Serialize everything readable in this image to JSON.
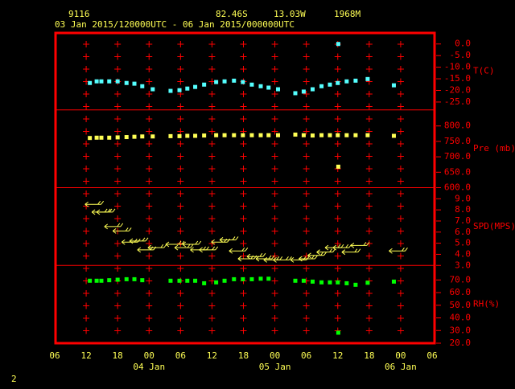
{
  "header": {
    "station": "9116",
    "lat": "82.46S",
    "lon": "13.03W",
    "elev": "1968M",
    "period": "03 Jan 2015/120000UTC - 06 Jan 2015/000000UTC",
    "page": "2"
  },
  "axis": {
    "xlim": [
      6,
      78
    ],
    "xticks": [
      {
        "value": 6,
        "label": "06"
      },
      12,
      18,
      {
        "value": 24,
        "label": "00"
      },
      {
        "value": 30,
        "label": "06"
      },
      {
        "value": 36,
        "label": "12"
      },
      {
        "value": 42,
        "label": "18"
      },
      {
        "value": 48,
        "label": "00"
      },
      {
        "value": 54,
        "label": "06"
      },
      {
        "value": 60,
        "label": "12"
      },
      {
        "value": 66,
        "label": "18"
      },
      {
        "value": 72,
        "label": "00"
      },
      {
        "value": 78,
        "label": "06"
      }
    ],
    "date_labels": [
      {
        "value": 24,
        "label": "04 Jan"
      },
      {
        "value": 48,
        "label": "05 Jan"
      },
      {
        "value": 72,
        "label": "06 Jan"
      }
    ],
    "x": [
      12.7,
      14.0,
      14.9,
      16.4,
      18.0,
      19.7,
      21.2,
      22.7,
      24.7,
      28.1,
      29.8,
      31.3,
      32.8,
      34.5,
      36.8,
      38.4,
      40.2,
      41.9,
      43.6,
      45.3,
      46.8,
      48.6,
      51.9,
      53.5,
      55.2,
      56.9,
      58.5,
      60.0,
      60.1,
      61.7,
      63.4,
      65.7,
      70.7
    ]
  },
  "chart_data": [
    {
      "type": "scatter",
      "title": "T(C)",
      "color": "#55ffff",
      "ylim": [
        -28.4,
        5.1
      ],
      "yticks": [
        {
          "value": 0,
          "label": "0.0"
        },
        {
          "value": -5,
          "label": "-5.0"
        },
        {
          "value": -10,
          "label": "-10.0"
        },
        {
          "value": -15,
          "label": "-15.0"
        },
        {
          "value": -20,
          "label": "-20.0"
        },
        {
          "value": -25,
          "label": "-25.0"
        }
      ],
      "values": [
        -16.8,
        -16.1,
        -16.1,
        -16.1,
        -16.1,
        -16.8,
        -17.1,
        -18.2,
        -19.5,
        -20.2,
        -19.9,
        -19.2,
        -18.5,
        -17.5,
        -16.4,
        -16.1,
        -15.8,
        -16.4,
        -17.5,
        -18.2,
        -18.8,
        -19.5,
        -21.2,
        -20.5,
        -19.5,
        -18.2,
        -17.5,
        -16.8,
        0.0,
        -16.1,
        -15.8,
        -15.1,
        -17.8
      ]
    },
    {
      "type": "scatter",
      "title": "Pre (mb)",
      "color": "#ffff55",
      "ylim": [
        600,
        852
      ],
      "yticks": [
        {
          "value": 600,
          "label": "600.0"
        },
        {
          "value": 650,
          "label": "650.0"
        },
        {
          "value": 700,
          "label": "700.0"
        },
        {
          "value": 750,
          "label": "750.0"
        },
        {
          "value": 800,
          "label": "800.0"
        }
      ],
      "values": [
        761,
        762,
        762,
        762,
        763,
        764,
        765,
        766,
        766,
        767,
        767,
        768,
        768,
        769,
        770,
        770,
        770,
        770,
        770,
        770,
        770,
        770,
        772,
        770,
        769,
        770,
        770,
        770,
        668,
        770,
        770,
        770,
        768
      ]
    },
    {
      "type": "barb",
      "title": "SPD(MPS)",
      "color": "#ffff55",
      "ylim": [
        3,
        10
      ],
      "yticks": [
        {
          "value": 3,
          "label": "3.0"
        },
        {
          "value": 4,
          "label": "4.0"
        },
        {
          "value": 5,
          "label": "5.0"
        },
        {
          "value": 6,
          "label": "6.0"
        },
        {
          "value": 7,
          "label": "7.0"
        },
        {
          "value": 8,
          "label": "8.0"
        },
        {
          "value": 9,
          "label": "9.0"
        }
      ],
      "values": [
        8.5,
        7.8,
        7.8,
        6.5,
        6.1,
        5.1,
        5.2,
        4.4,
        4.6,
        4.9,
        4.6,
        4.9,
        4.4,
        4.4,
        5.1,
        5.3,
        4.3,
        3.6,
        3.8,
        3.6,
        3.5,
        3.5,
        3.5,
        3.6,
        3.9,
        4.2,
        4.6,
        4.6,
        null,
        4.2,
        4.8,
        null,
        4.3
      ]
    },
    {
      "type": "scatter",
      "title": "RH(%)",
      "color": "#00ff00",
      "ylim": [
        20,
        81.5
      ],
      "yticks": [
        {
          "value": 20,
          "label": "20.0"
        },
        {
          "value": 30,
          "label": "30.0"
        },
        {
          "value": 40,
          "label": "40.0"
        },
        {
          "value": 50,
          "label": "50.0"
        },
        {
          "value": 60,
          "label": "60.0"
        },
        {
          "value": 70,
          "label": "70.0"
        }
      ],
      "values": [
        69.4,
        69.4,
        69.4,
        69.8,
        70.2,
        70.6,
        70.6,
        69.8,
        null,
        69.4,
        69.4,
        69.4,
        69.4,
        67.4,
        68.1,
        69.4,
        70.6,
        70.6,
        70.6,
        71.0,
        71.0,
        null,
        69.4,
        69.4,
        68.7,
        68.1,
        68.1,
        68.1,
        28.3,
        67.4,
        66.2,
        67.8,
        68.7
      ]
    }
  ]
}
